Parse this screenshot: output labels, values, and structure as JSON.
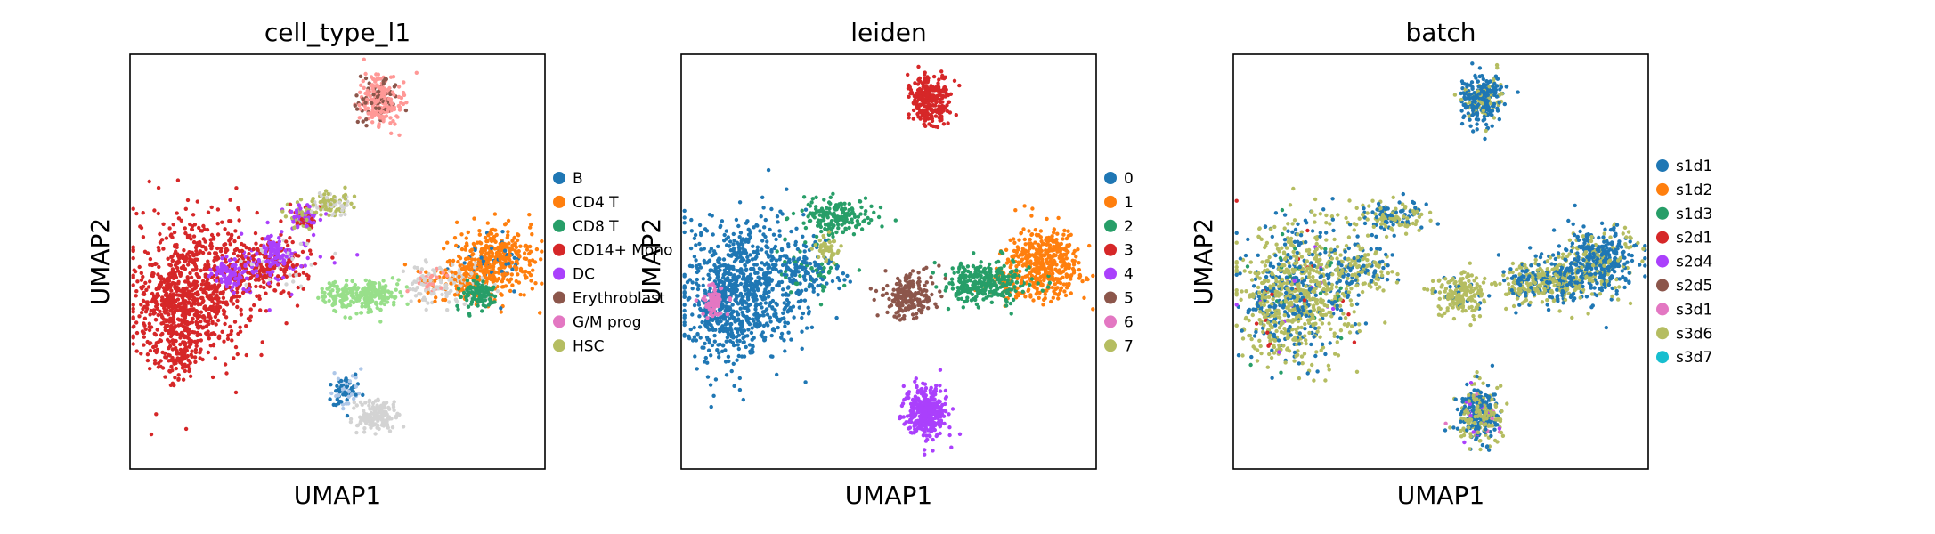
{
  "chart_data": [
    {
      "type": "scatter",
      "title": "cell_type_l1",
      "xlabel": "UMAP1",
      "ylabel": "UMAP2",
      "xlim": [
        0,
        100
      ],
      "ylim": [
        0,
        100
      ],
      "grid": false,
      "legend_position": "right",
      "series": [
        {
          "name": "B",
          "color": "#1f77b4"
        },
        {
          "name": "CD4 T",
          "color": "#ff7f0e"
        },
        {
          "name": "CD8 T",
          "color": "#279e68"
        },
        {
          "name": "CD14+ Mono",
          "color": "#d62728"
        },
        {
          "name": "DC",
          "color": "#aa40fc"
        },
        {
          "name": "Erythroblast",
          "color": "#8c564b"
        },
        {
          "name": "G/M prog",
          "color": "#e377c2"
        },
        {
          "name": "HSC",
          "color": "#b5bd61"
        }
      ],
      "extra_colors": [
        "#98df8a",
        "#ff9896",
        "#d3d3d3",
        "#aec7e8"
      ],
      "clusters": [
        {
          "cx": 16,
          "cy": 44,
          "rx": 14,
          "ry": 17,
          "n": 700,
          "mix": [
            [
              3,
              1.0
            ]
          ]
        },
        {
          "cx": 10,
          "cy": 38,
          "rx": 8,
          "ry": 13,
          "n": 220,
          "mix": [
            [
              3,
              1.0
            ]
          ]
        },
        {
          "cx": 12,
          "cy": 27,
          "rx": 5,
          "ry": 6,
          "n": 90,
          "mix": [
            [
              3,
              1.0
            ]
          ]
        },
        {
          "cx": 31,
          "cy": 48,
          "rx": 9,
          "ry": 6,
          "n": 180,
          "mix": [
            [
              3,
              0.75
            ],
            [
              4,
              0.25
            ]
          ]
        },
        {
          "cx": 36,
          "cy": 51,
          "rx": 10,
          "ry": 6,
          "n": 160,
          "mix": [
            [
              3,
              0.4
            ],
            [
              4,
              0.35
            ],
            [
              10,
              0.25
            ]
          ]
        },
        {
          "cx": 24,
          "cy": 47,
          "rx": 4,
          "ry": 3,
          "n": 70,
          "mix": [
            [
              4,
              1.0
            ]
          ]
        },
        {
          "cx": 35,
          "cy": 52,
          "rx": 3,
          "ry": 3,
          "n": 60,
          "mix": [
            [
              4,
              1.0
            ]
          ]
        },
        {
          "cx": 42,
          "cy": 61,
          "rx": 4,
          "ry": 3,
          "n": 110,
          "mix": [
            [
              4,
              0.5
            ],
            [
              7,
              0.3
            ],
            [
              3,
              0.2
            ]
          ]
        },
        {
          "cx": 48,
          "cy": 64,
          "rx": 5,
          "ry": 3,
          "n": 90,
          "mix": [
            [
              7,
              0.6
            ],
            [
              10,
              0.4
            ]
          ]
        },
        {
          "cx": 60,
          "cy": 89,
          "rx": 5,
          "ry": 6,
          "n": 260,
          "mix": [
            [
              9,
              0.75
            ],
            [
              5,
              0.25
            ]
          ]
        },
        {
          "cx": 88,
          "cy": 50,
          "rx": 9,
          "ry": 8,
          "n": 420,
          "mix": [
            [
              1,
              0.9
            ],
            [
              0,
              0.1
            ]
          ]
        },
        {
          "cx": 80,
          "cy": 45,
          "rx": 7,
          "ry": 5,
          "n": 160,
          "mix": [
            [
              1,
              0.6
            ],
            [
              10,
              0.4
            ]
          ]
        },
        {
          "cx": 84,
          "cy": 42,
          "rx": 4,
          "ry": 3,
          "n": 100,
          "mix": [
            [
              2,
              1.0
            ]
          ]
        },
        {
          "cx": 72,
          "cy": 45,
          "rx": 5,
          "ry": 4,
          "n": 110,
          "mix": [
            [
              10,
              0.6
            ],
            [
              1,
              0.2
            ],
            [
              9,
              0.2
            ]
          ]
        },
        {
          "cx": 58,
          "cy": 42,
          "rx": 7,
          "ry": 4,
          "n": 170,
          "mix": [
            [
              8,
              1.0
            ]
          ]
        },
        {
          "cx": 50,
          "cy": 42,
          "rx": 4,
          "ry": 3,
          "n": 80,
          "mix": [
            [
              8,
              1.0
            ]
          ]
        },
        {
          "cx": 59,
          "cy": 13,
          "rx": 5,
          "ry": 4,
          "n": 150,
          "mix": [
            [
              10,
              1.0
            ]
          ]
        },
        {
          "cx": 52,
          "cy": 19,
          "rx": 3,
          "ry": 4,
          "n": 90,
          "mix": [
            [
              0,
              0.55
            ],
            [
              11,
              0.45
            ]
          ]
        }
      ]
    },
    {
      "type": "scatter",
      "title": "leiden",
      "xlabel": "UMAP1",
      "ylabel": "UMAP2",
      "xlim": [
        0,
        100
      ],
      "ylim": [
        0,
        100
      ],
      "grid": false,
      "legend_position": "right",
      "series": [
        {
          "name": "0",
          "color": "#1f77b4"
        },
        {
          "name": "1",
          "color": "#ff7f0e"
        },
        {
          "name": "2",
          "color": "#279e68"
        },
        {
          "name": "3",
          "color": "#d62728"
        },
        {
          "name": "4",
          "color": "#aa40fc"
        },
        {
          "name": "5",
          "color": "#8c564b"
        },
        {
          "name": "6",
          "color": "#e377c2"
        },
        {
          "name": "7",
          "color": "#b5bd61"
        }
      ],
      "clusters": [
        {
          "cx": 16,
          "cy": 44,
          "rx": 14,
          "ry": 17,
          "n": 700,
          "mix": [
            [
              0,
              1.0
            ]
          ]
        },
        {
          "cx": 10,
          "cy": 38,
          "rx": 8,
          "ry": 13,
          "n": 220,
          "mix": [
            [
              0,
              1.0
            ]
          ]
        },
        {
          "cx": 31,
          "cy": 48,
          "rx": 9,
          "ry": 6,
          "n": 160,
          "mix": [
            [
              0,
              0.7
            ],
            [
              2,
              0.3
            ]
          ]
        },
        {
          "cx": 38,
          "cy": 61,
          "rx": 9,
          "ry": 4,
          "n": 170,
          "mix": [
            [
              2,
              1.0
            ]
          ]
        },
        {
          "cx": 35,
          "cy": 53,
          "rx": 3,
          "ry": 3,
          "n": 50,
          "mix": [
            [
              7,
              1.0
            ]
          ]
        },
        {
          "cx": 8,
          "cy": 41,
          "rx": 3,
          "ry": 4,
          "n": 70,
          "mix": [
            [
              6,
              1.0
            ]
          ]
        },
        {
          "cx": 60,
          "cy": 89,
          "rx": 5,
          "ry": 6,
          "n": 280,
          "mix": [
            [
              3,
              1.0
            ]
          ]
        },
        {
          "cx": 88,
          "cy": 50,
          "rx": 9,
          "ry": 8,
          "n": 420,
          "mix": [
            [
              1,
              1.0
            ]
          ]
        },
        {
          "cx": 80,
          "cy": 45,
          "rx": 7,
          "ry": 5,
          "n": 150,
          "mix": [
            [
              1,
              0.5
            ],
            [
              2,
              0.5
            ]
          ]
        },
        {
          "cx": 72,
          "cy": 45,
          "rx": 8,
          "ry": 5,
          "n": 240,
          "mix": [
            [
              2,
              1.0
            ]
          ]
        },
        {
          "cx": 55,
          "cy": 42,
          "rx": 6,
          "ry": 5,
          "n": 190,
          "mix": [
            [
              5,
              1.0
            ]
          ]
        },
        {
          "cx": 59,
          "cy": 14,
          "rx": 5,
          "ry": 7,
          "n": 330,
          "mix": [
            [
              4,
              1.0
            ]
          ]
        }
      ]
    },
    {
      "type": "scatter",
      "title": "batch",
      "xlabel": "UMAP1",
      "ylabel": "UMAP2",
      "xlim": [
        0,
        100
      ],
      "ylim": [
        0,
        100
      ],
      "grid": false,
      "legend_position": "right",
      "series": [
        {
          "name": "s1d1",
          "color": "#1f77b4"
        },
        {
          "name": "s1d2",
          "color": "#ff7f0e"
        },
        {
          "name": "s1d3",
          "color": "#279e68"
        },
        {
          "name": "s2d1",
          "color": "#d62728"
        },
        {
          "name": "s2d4",
          "color": "#aa40fc"
        },
        {
          "name": "s2d5",
          "color": "#8c564b"
        },
        {
          "name": "s3d1",
          "color": "#e377c2"
        },
        {
          "name": "s3d6",
          "color": "#b5bd61"
        },
        {
          "name": "s3d7",
          "color": "#17becf"
        }
      ],
      "clusters": [
        {
          "cx": 16,
          "cy": 44,
          "rx": 14,
          "ry": 17,
          "n": 700,
          "mix": [
            [
              7,
              0.6
            ],
            [
              0,
              0.33
            ],
            [
              2,
              0.03
            ],
            [
              3,
              0.02
            ],
            [
              4,
              0.02
            ]
          ]
        },
        {
          "cx": 10,
          "cy": 38,
          "rx": 8,
          "ry": 13,
          "n": 220,
          "mix": [
            [
              7,
              0.6
            ],
            [
              0,
              0.34
            ],
            [
              3,
              0.03
            ],
            [
              4,
              0.03
            ]
          ]
        },
        {
          "cx": 31,
          "cy": 48,
          "rx": 9,
          "ry": 6,
          "n": 150,
          "mix": [
            [
              7,
              0.55
            ],
            [
              0,
              0.45
            ]
          ]
        },
        {
          "cx": 38,
          "cy": 61,
          "rx": 9,
          "ry": 4,
          "n": 150,
          "mix": [
            [
              7,
              0.5
            ],
            [
              0,
              0.5
            ]
          ]
        },
        {
          "cx": 60,
          "cy": 89,
          "rx": 5,
          "ry": 6,
          "n": 280,
          "mix": [
            [
              0,
              0.85
            ],
            [
              7,
              0.15
            ]
          ]
        },
        {
          "cx": 88,
          "cy": 50,
          "rx": 9,
          "ry": 8,
          "n": 420,
          "mix": [
            [
              0,
              0.7
            ],
            [
              7,
              0.3
            ]
          ]
        },
        {
          "cx": 80,
          "cy": 45,
          "rx": 7,
          "ry": 5,
          "n": 150,
          "mix": [
            [
              0,
              0.5
            ],
            [
              7,
              0.5
            ]
          ]
        },
        {
          "cx": 72,
          "cy": 45,
          "rx": 8,
          "ry": 5,
          "n": 230,
          "mix": [
            [
              7,
              0.65
            ],
            [
              0,
              0.35
            ]
          ]
        },
        {
          "cx": 55,
          "cy": 42,
          "rx": 6,
          "ry": 5,
          "n": 190,
          "mix": [
            [
              7,
              0.9
            ],
            [
              0,
              0.1
            ]
          ]
        },
        {
          "cx": 59,
          "cy": 13,
          "rx": 5,
          "ry": 7,
          "n": 330,
          "mix": [
            [
              7,
              0.45
            ],
            [
              0,
              0.45
            ],
            [
              4,
              0.06
            ],
            [
              6,
              0.04
            ]
          ]
        }
      ]
    }
  ]
}
